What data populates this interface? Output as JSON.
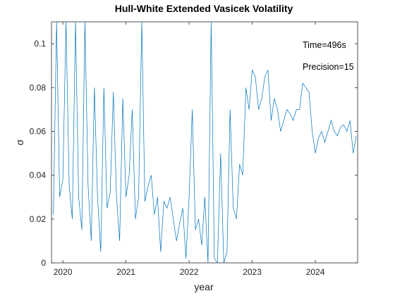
{
  "chart_data": {
    "type": "line",
    "title": "Hull-White Extended Vasicek Volatility",
    "xlabel": "year",
    "ylabel": "σ",
    "xlim": [
      2019.82,
      2024.67
    ],
    "ylim": [
      0,
      0.11
    ],
    "xticks": [
      2020,
      2021,
      2022,
      2023,
      2024
    ],
    "xtick_labels": [
      "2020",
      "2021",
      "2022",
      "2023",
      "2024"
    ],
    "yticks": [
      0,
      0.02,
      0.04,
      0.06,
      0.08,
      0.1
    ],
    "ytick_labels": [
      "0",
      "0.02",
      "0.04",
      "0.06",
      "0.08",
      "0.1"
    ],
    "grid": false,
    "line_color": "#0072BD",
    "annotations": [
      "Time=496s",
      "Precision=15"
    ],
    "series": [
      {
        "x": [
          2019.85,
          2019.9,
          2019.95,
          2020.0,
          2020.05,
          2020.1,
          2020.15,
          2020.2,
          2020.25,
          2020.3,
          2020.35,
          2020.4,
          2020.45,
          2020.5,
          2020.55,
          2020.6,
          2020.65,
          2020.7,
          2020.75,
          2020.8,
          2020.85,
          2020.9,
          2020.95,
          2021.0,
          2021.05,
          2021.1,
          2021.15,
          2021.2,
          2021.25,
          2021.3,
          2021.35,
          2021.4,
          2021.45,
          2021.5,
          2021.55,
          2021.6,
          2021.65,
          2021.7,
          2021.75,
          2021.8,
          2021.85,
          2021.9,
          2021.95,
          2022.0,
          2022.05,
          2022.1,
          2022.15,
          2022.2,
          2022.25,
          2022.3,
          2022.35,
          2022.4,
          2022.45,
          2022.5,
          2022.55,
          2022.6,
          2022.65,
          2022.7,
          2022.75,
          2022.8,
          2022.85,
          2022.9,
          2022.95,
          2023.0,
          2023.05,
          2023.1,
          2023.15,
          2023.2,
          2023.25,
          2023.3,
          2023.35,
          2023.4,
          2023.45,
          2023.5,
          2023.55,
          2023.6,
          2023.65,
          2023.7,
          2023.75,
          2023.8,
          2023.85,
          2023.9,
          2023.95,
          2024.0,
          2024.05,
          2024.1,
          2024.15,
          2024.2,
          2024.25,
          2024.3,
          2024.35,
          2024.4,
          2024.45,
          2024.5,
          2024.55,
          2024.6,
          2024.65
        ],
        "y": [
          0.022,
          0.11,
          0.03,
          0.038,
          0.11,
          0.035,
          0.02,
          0.11,
          0.03,
          0.015,
          0.11,
          0.035,
          0.01,
          0.08,
          0.03,
          0.005,
          0.08,
          0.025,
          0.032,
          0.078,
          0.03,
          0.01,
          0.075,
          0.03,
          0.04,
          0.07,
          0.02,
          0.03,
          0.11,
          0.028,
          0.035,
          0.04,
          0.022,
          0.03,
          0.005,
          0.028,
          0.025,
          0.03,
          0.02,
          0.01,
          0.018,
          0.025,
          0.002,
          0.03,
          0.07,
          0.015,
          0.02,
          0.008,
          0.03,
          0.0,
          0.11,
          0.002,
          0.0,
          0.05,
          0.0,
          0.005,
          0.07,
          0.025,
          0.02,
          0.045,
          0.04,
          0.08,
          0.07,
          0.088,
          0.085,
          0.07,
          0.075,
          0.085,
          0.088,
          0.065,
          0.075,
          0.07,
          0.06,
          0.065,
          0.07,
          0.068,
          0.065,
          0.07,
          0.07,
          0.082,
          0.08,
          0.078,
          0.06,
          0.05,
          0.057,
          0.06,
          0.055,
          0.06,
          0.065,
          0.06,
          0.058,
          0.062,
          0.063,
          0.06,
          0.065,
          0.05,
          0.058
        ]
      }
    ]
  }
}
